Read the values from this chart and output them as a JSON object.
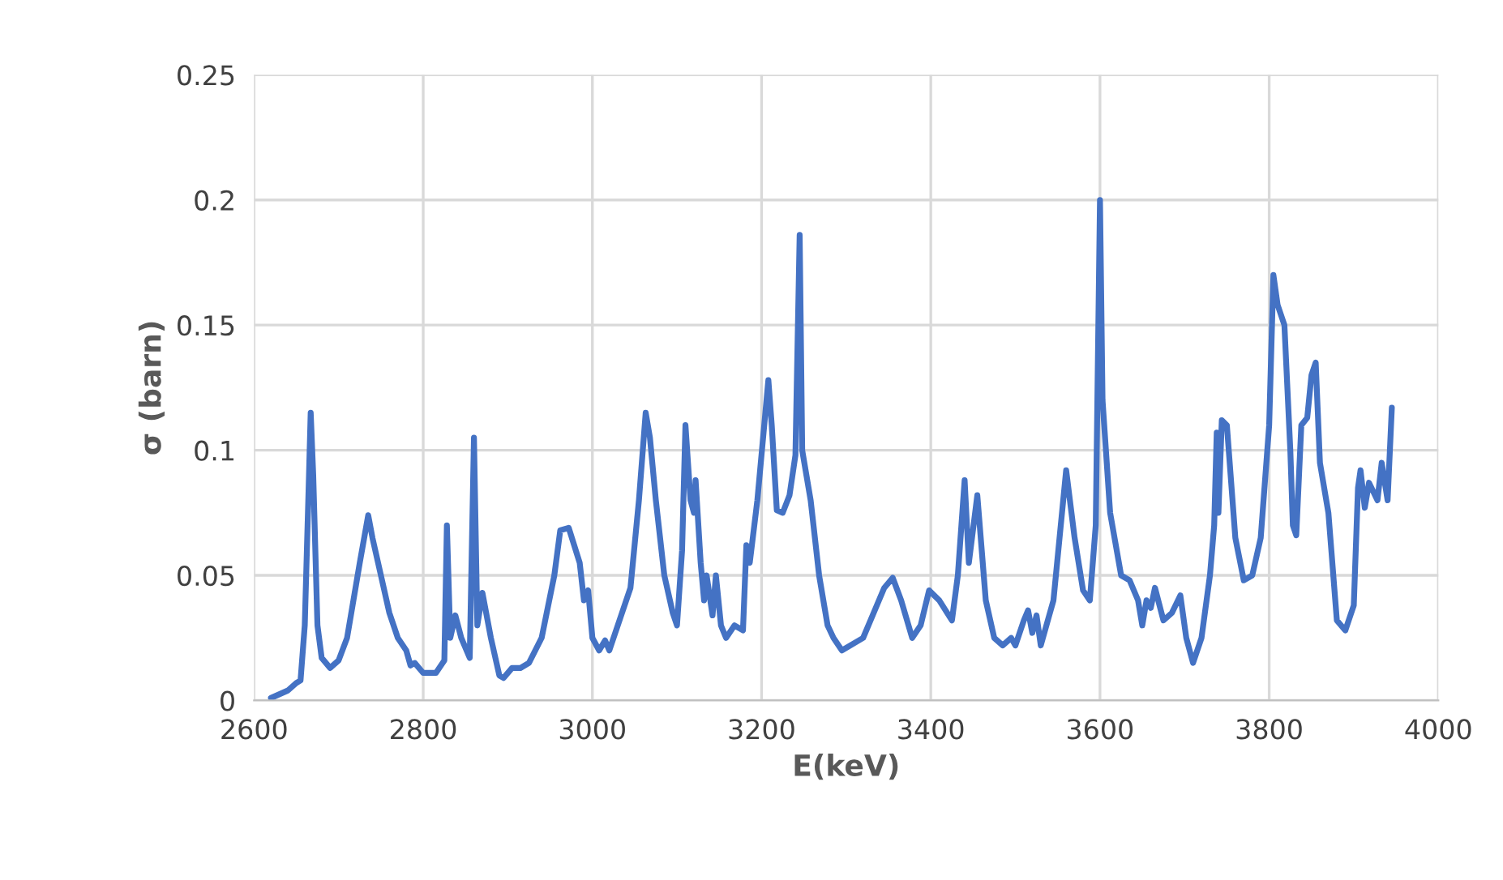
{
  "chart_data": {
    "type": "line",
    "xlabel": "E(keV)",
    "ylabel": "σ (barn)",
    "xlim": [
      2600,
      4000
    ],
    "xticks": [
      2600,
      2800,
      3000,
      3200,
      3400,
      3600,
      3800,
      4000
    ],
    "ylim": [
      0,
      0.25
    ],
    "yticks": [
      0,
      0.05,
      0.1,
      0.15,
      0.2,
      0.25
    ],
    "grid": true,
    "legend": false,
    "marker": "none",
    "line_style": "solid",
    "series": [
      {
        "color": "#4472c4",
        "x": [
          2620,
          2640,
          2650,
          2655,
          2660,
          2665,
          2667,
          2670,
          2675,
          2680,
          2690,
          2700,
          2710,
          2725,
          2735,
          2740,
          2750,
          2760,
          2770,
          2780,
          2785,
          2790,
          2800,
          2815,
          2825,
          2828,
          2832,
          2838,
          2845,
          2855,
          2860,
          2864,
          2870,
          2880,
          2890,
          2895,
          2905,
          2915,
          2925,
          2940,
          2955,
          2962,
          2972,
          2985,
          2990,
          2995,
          3000,
          3008,
          3015,
          3020,
          3035,
          3045,
          3055,
          3063,
          3068,
          3075,
          3085,
          3095,
          3100,
          3106,
          3110,
          3116,
          3120,
          3122,
          3128,
          3132,
          3135,
          3142,
          3146,
          3152,
          3158,
          3168,
          3178,
          3182,
          3186,
          3195,
          3208,
          3212,
          3218,
          3225,
          3233,
          3240,
          3245,
          3248,
          3258,
          3268,
          3278,
          3285,
          3295,
          3320,
          3345,
          3355,
          3365,
          3378,
          3388,
          3398,
          3410,
          3425,
          3432,
          3440,
          3445,
          3455,
          3465,
          3475,
          3485,
          3495,
          3500,
          3510,
          3515,
          3520,
          3525,
          3530,
          3545,
          3560,
          3570,
          3580,
          3588,
          3595,
          3600,
          3603,
          3612,
          3625,
          3635,
          3645,
          3650,
          3655,
          3660,
          3665,
          3675,
          3685,
          3695,
          3702,
          3710,
          3720,
          3730,
          3735,
          3738,
          3740,
          3744,
          3750,
          3760,
          3770,
          3780,
          3790,
          3800,
          3805,
          3810,
          3818,
          3825,
          3828,
          3832,
          3838,
          3845,
          3850,
          3855,
          3860,
          3870,
          3880,
          3890,
          3900,
          3905,
          3908,
          3913,
          3918,
          3928,
          3933,
          3940,
          3945
        ],
        "values": [
          0.001,
          0.004,
          0.007,
          0.008,
          0.03,
          0.09,
          0.115,
          0.09,
          0.03,
          0.017,
          0.013,
          0.016,
          0.025,
          0.055,
          0.074,
          0.065,
          0.05,
          0.035,
          0.025,
          0.02,
          0.014,
          0.015,
          0.011,
          0.011,
          0.016,
          0.07,
          0.025,
          0.034,
          0.025,
          0.017,
          0.105,
          0.03,
          0.043,
          0.025,
          0.01,
          0.009,
          0.013,
          0.013,
          0.015,
          0.025,
          0.05,
          0.068,
          0.069,
          0.055,
          0.04,
          0.044,
          0.025,
          0.02,
          0.024,
          0.02,
          0.035,
          0.045,
          0.08,
          0.115,
          0.105,
          0.08,
          0.05,
          0.035,
          0.03,
          0.06,
          0.11,
          0.08,
          0.075,
          0.088,
          0.055,
          0.04,
          0.05,
          0.034,
          0.05,
          0.03,
          0.025,
          0.03,
          0.028,
          0.062,
          0.055,
          0.08,
          0.128,
          0.11,
          0.076,
          0.075,
          0.082,
          0.098,
          0.186,
          0.1,
          0.08,
          0.05,
          0.03,
          0.025,
          0.02,
          0.025,
          0.045,
          0.049,
          0.04,
          0.025,
          0.03,
          0.044,
          0.04,
          0.032,
          0.05,
          0.088,
          0.055,
          0.082,
          0.04,
          0.025,
          0.022,
          0.025,
          0.022,
          0.032,
          0.036,
          0.027,
          0.034,
          0.022,
          0.04,
          0.092,
          0.065,
          0.044,
          0.04,
          0.07,
          0.2,
          0.12,
          0.075,
          0.05,
          0.048,
          0.04,
          0.03,
          0.04,
          0.037,
          0.045,
          0.032,
          0.035,
          0.042,
          0.025,
          0.015,
          0.025,
          0.05,
          0.07,
          0.107,
          0.075,
          0.112,
          0.11,
          0.065,
          0.048,
          0.05,
          0.065,
          0.11,
          0.17,
          0.158,
          0.15,
          0.1,
          0.07,
          0.066,
          0.11,
          0.113,
          0.13,
          0.135,
          0.095,
          0.075,
          0.032,
          0.028,
          0.038,
          0.085,
          0.092,
          0.077,
          0.087,
          0.08,
          0.095,
          0.08,
          0.117
        ]
      }
    ]
  }
}
